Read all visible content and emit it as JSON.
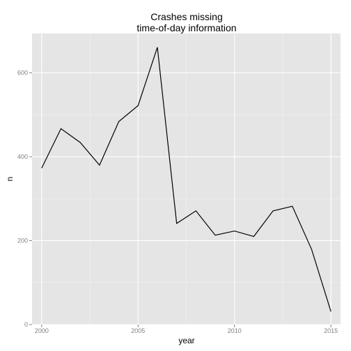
{
  "chart_data": {
    "type": "line",
    "title_lines": [
      "Crashes missing",
      "time-of-day information"
    ],
    "xlabel": "year",
    "ylabel": "n",
    "x": [
      2000,
      2001,
      2002,
      2003,
      2004,
      2005,
      2006,
      2007,
      2008,
      2009,
      2010,
      2011,
      2012,
      2013,
      2014,
      2015
    ],
    "y": [
      373,
      467,
      434,
      380,
      484,
      522,
      661,
      241,
      271,
      213,
      223,
      210,
      271,
      282,
      179,
      31
    ],
    "xlim": [
      1999.5,
      2015.5
    ],
    "ylim": [
      0,
      694
    ],
    "x_ticks": [
      2000,
      2005,
      2010,
      2015
    ],
    "x_tick_labels": [
      "2000",
      "2005",
      "2010",
      "2015"
    ],
    "y_ticks": [
      0,
      200,
      400,
      600
    ],
    "y_tick_labels": [
      "0",
      "200",
      "400",
      "600"
    ],
    "grid": true,
    "colors": {
      "panel_background": "#e5e5e5",
      "grid_major": "#ffffff",
      "grid_minor": "#f2f2f2",
      "line": "#000000",
      "tick": "#7f7f7f"
    }
  }
}
